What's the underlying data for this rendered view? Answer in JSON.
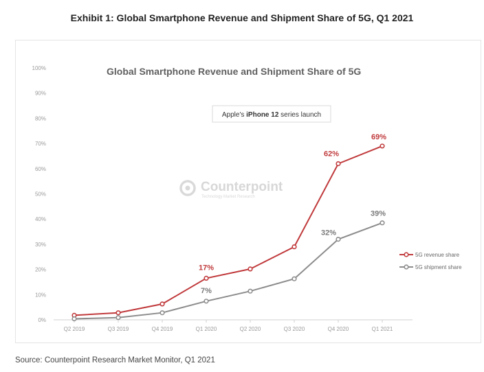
{
  "header": {
    "exhibit_title": "Exhibit 1: Global Smartphone Revenue and Shipment Share of 5G, Q1 2021"
  },
  "footer": {
    "source": "Source: Counterpoint Research Market Monitor, Q1 2021"
  },
  "watermark": {
    "name": "Counterpoint",
    "tagline": "Technology Market Research"
  },
  "callout": {
    "prefix": "Apple's ",
    "bold": "iPhone 12",
    "suffix": " series launch"
  },
  "colors": {
    "revenue": "#c0393b",
    "shipment": "#8c8c8c",
    "axis": "#d0d0d0",
    "label_shipment": "#7a7a7a"
  },
  "chart_data": {
    "type": "line",
    "title": "Global Smartphone Revenue and Shipment Share of 5G",
    "xlabel": "",
    "ylabel": "",
    "ylim": [
      0,
      100
    ],
    "yticks": [
      "0%",
      "10%",
      "20%",
      "30%",
      "40%",
      "50%",
      "60%",
      "70%",
      "80%",
      "90%",
      "100%"
    ],
    "categories": [
      "Q2 2019",
      "Q3 2019",
      "Q4 2019",
      "Q1 2020",
      "Q2 2020",
      "Q3 2020",
      "Q4 2020",
      "Q1 2021"
    ],
    "legend_position": "right",
    "series": [
      {
        "name": "5G revenue share",
        "key": "revenue",
        "values": [
          1.8,
          2.8,
          6.3,
          16.5,
          20.2,
          29.0,
          62.0,
          69.0
        ],
        "labels": [
          "",
          "",
          "",
          "17%",
          "",
          "",
          "62%",
          "69%"
        ]
      },
      {
        "name": "5G shipment share",
        "key": "shipment",
        "values": [
          0.4,
          0.9,
          2.8,
          7.4,
          11.4,
          16.3,
          32.0,
          38.5
        ],
        "labels": [
          "",
          "",
          "",
          "7%",
          "",
          "",
          "32%",
          "39%"
        ]
      }
    ]
  }
}
